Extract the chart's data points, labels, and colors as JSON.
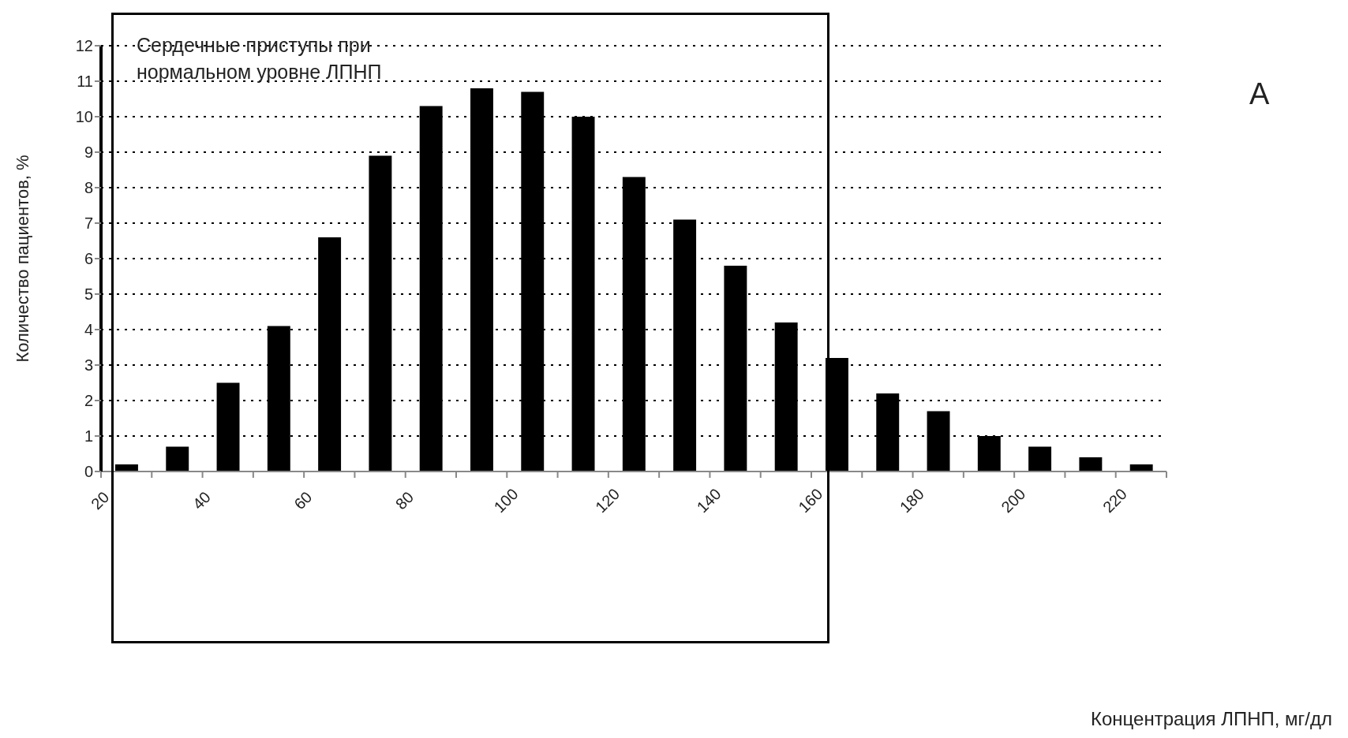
{
  "chart_data": {
    "type": "histogram",
    "ylabel": "Количество пациентов, %",
    "annotations": [
      "Сердечные приступы при нормальном уровне ЛПНП",
      "A",
      "Концентрация ЛПНП, мг/дл"
    ],
    "bins": [
      20,
      30,
      40,
      50,
      60,
      70,
      80,
      90,
      100,
      110,
      120,
      130,
      140,
      150,
      160,
      170,
      180,
      190,
      200,
      210,
      220,
      230
    ],
    "values": [
      0.2,
      0.7,
      2.5,
      4.1,
      6.6,
      8.9,
      10.3,
      10.8,
      10.7,
      10.0,
      8.3,
      7.1,
      5.8,
      4.2,
      3.2,
      2.2,
      1.7,
      1.0,
      0.7,
      0.4,
      0.2
    ],
    "color": "#000000",
    "xlim": [
      20,
      230
    ],
    "xticks": [
      20,
      {
        "value": 30,
        "label": null
      },
      40,
      {
        "value": 50,
        "label": null
      },
      60,
      {
        "value": 70,
        "label": null
      },
      80,
      {
        "value": 90,
        "label": null
      },
      100,
      {
        "value": 110,
        "label": null
      },
      120,
      {
        "value": 130,
        "label": null
      },
      140,
      {
        "value": 150,
        "label": null
      },
      160,
      {
        "value": 170,
        "label": null
      },
      180,
      {
        "value": 190,
        "label": null
      },
      200,
      {
        "value": 210,
        "label": null
      },
      220,
      {
        "value": 230,
        "label": null
      }
    ],
    "ylim": [
      0,
      12
    ],
    "yticks": [
      0,
      1,
      2,
      3,
      4,
      5,
      6,
      7,
      8,
      9,
      10,
      11,
      12
    ],
    "grid": "y"
  }
}
